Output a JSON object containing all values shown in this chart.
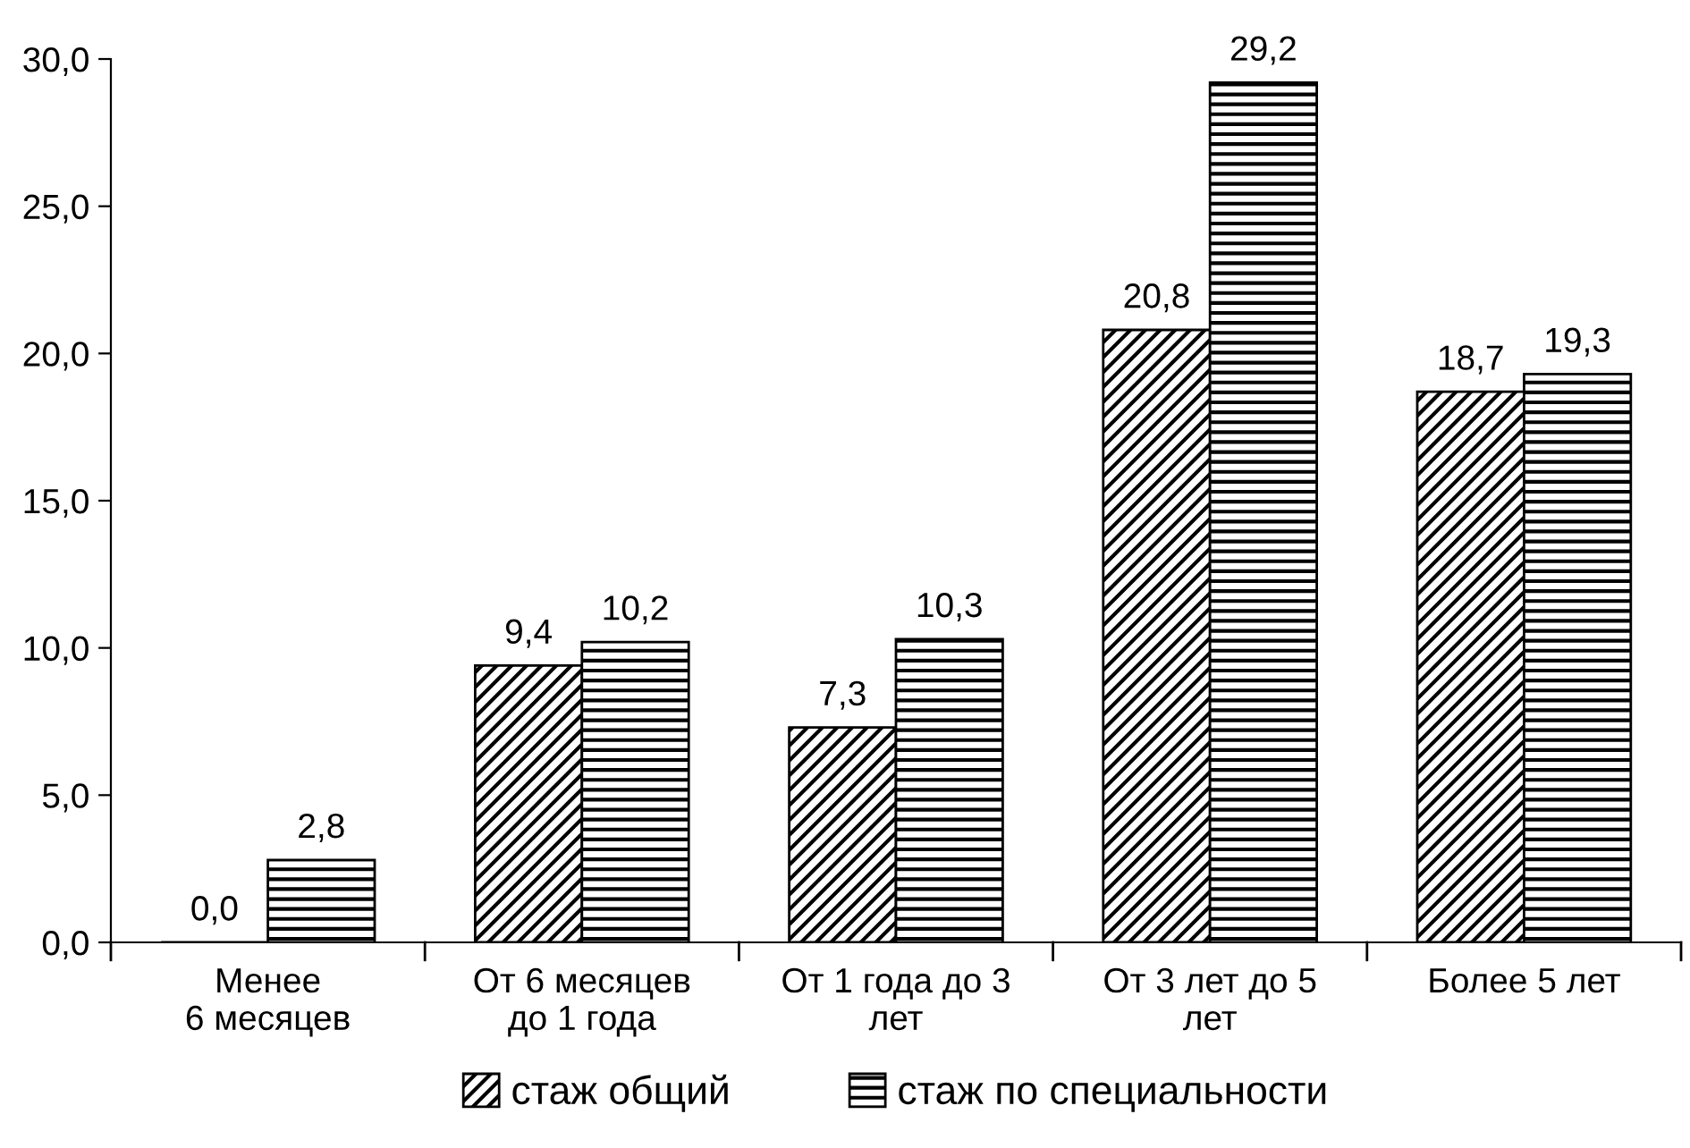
{
  "chart_data": {
    "type": "bar",
    "categories": [
      "Менее\n6 месяцев",
      "От 6 месяцев\nдо 1 года",
      "От 1 года до 3\nлет",
      "От 3 лет до 5\nлет",
      "Более 5 лет"
    ],
    "series": [
      {
        "name": "стаж общий",
        "color": "#000000",
        "values": [
          0.0,
          9.4,
          7.3,
          20.8,
          18.7
        ],
        "value_labels": [
          "0,0",
          "9,4",
          "7,3",
          "20,8",
          "18,7"
        ]
      },
      {
        "name": "стаж по специальности",
        "color": "#000000",
        "values": [
          2.8,
          10.2,
          10.3,
          29.2,
          19.3
        ],
        "value_labels": [
          "2,8",
          "10,2",
          "10,3",
          "29,2",
          "19,3"
        ]
      }
    ],
    "ylim": [
      0,
      30
    ],
    "yticks": [
      {
        "value": 0,
        "label": "0,0"
      },
      {
        "value": 5,
        "label": "5,0"
      },
      {
        "value": 10,
        "label": "10,0"
      },
      {
        "value": 15,
        "label": "15,0"
      },
      {
        "value": 20,
        "label": "20,0"
      },
      {
        "value": 25,
        "label": "25,0"
      },
      {
        "value": 30,
        "label": "30,0"
      }
    ],
    "grid": false,
    "legend": "bottom"
  }
}
